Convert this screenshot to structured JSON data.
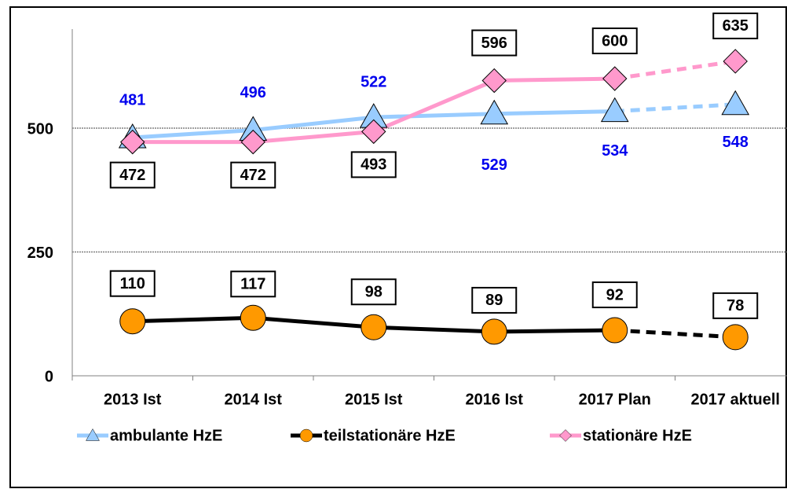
{
  "chart_data": {
    "type": "line",
    "categories": [
      "2013 Ist",
      "2014 Ist",
      "2015 Ist",
      "2016 Ist",
      "2017 Plan",
      "2017 aktuell"
    ],
    "series": [
      {
        "name": "ambulante HzE",
        "color": "#99ccff",
        "marker": "triangle",
        "label_color": "#0000ee",
        "values": [
          481,
          496,
          522,
          529,
          534,
          548
        ]
      },
      {
        "name": "teilstationäre HzE",
        "color": "#000000",
        "marker": "circle",
        "marker_color": "#ff9900",
        "label_color": "#000000",
        "values": [
          110,
          117,
          98,
          89,
          92,
          78
        ]
      },
      {
        "name": "stationäre HzE",
        "color": "#ff99cc",
        "marker": "diamond",
        "label_color": "#000000",
        "values": [
          472,
          472,
          493,
          596,
          600,
          635
        ]
      }
    ],
    "ylim": [
      0,
      700
    ],
    "yticks": [
      0,
      250,
      500
    ],
    "grid": true,
    "dashed_last_segment": true,
    "legend": "bottom"
  }
}
